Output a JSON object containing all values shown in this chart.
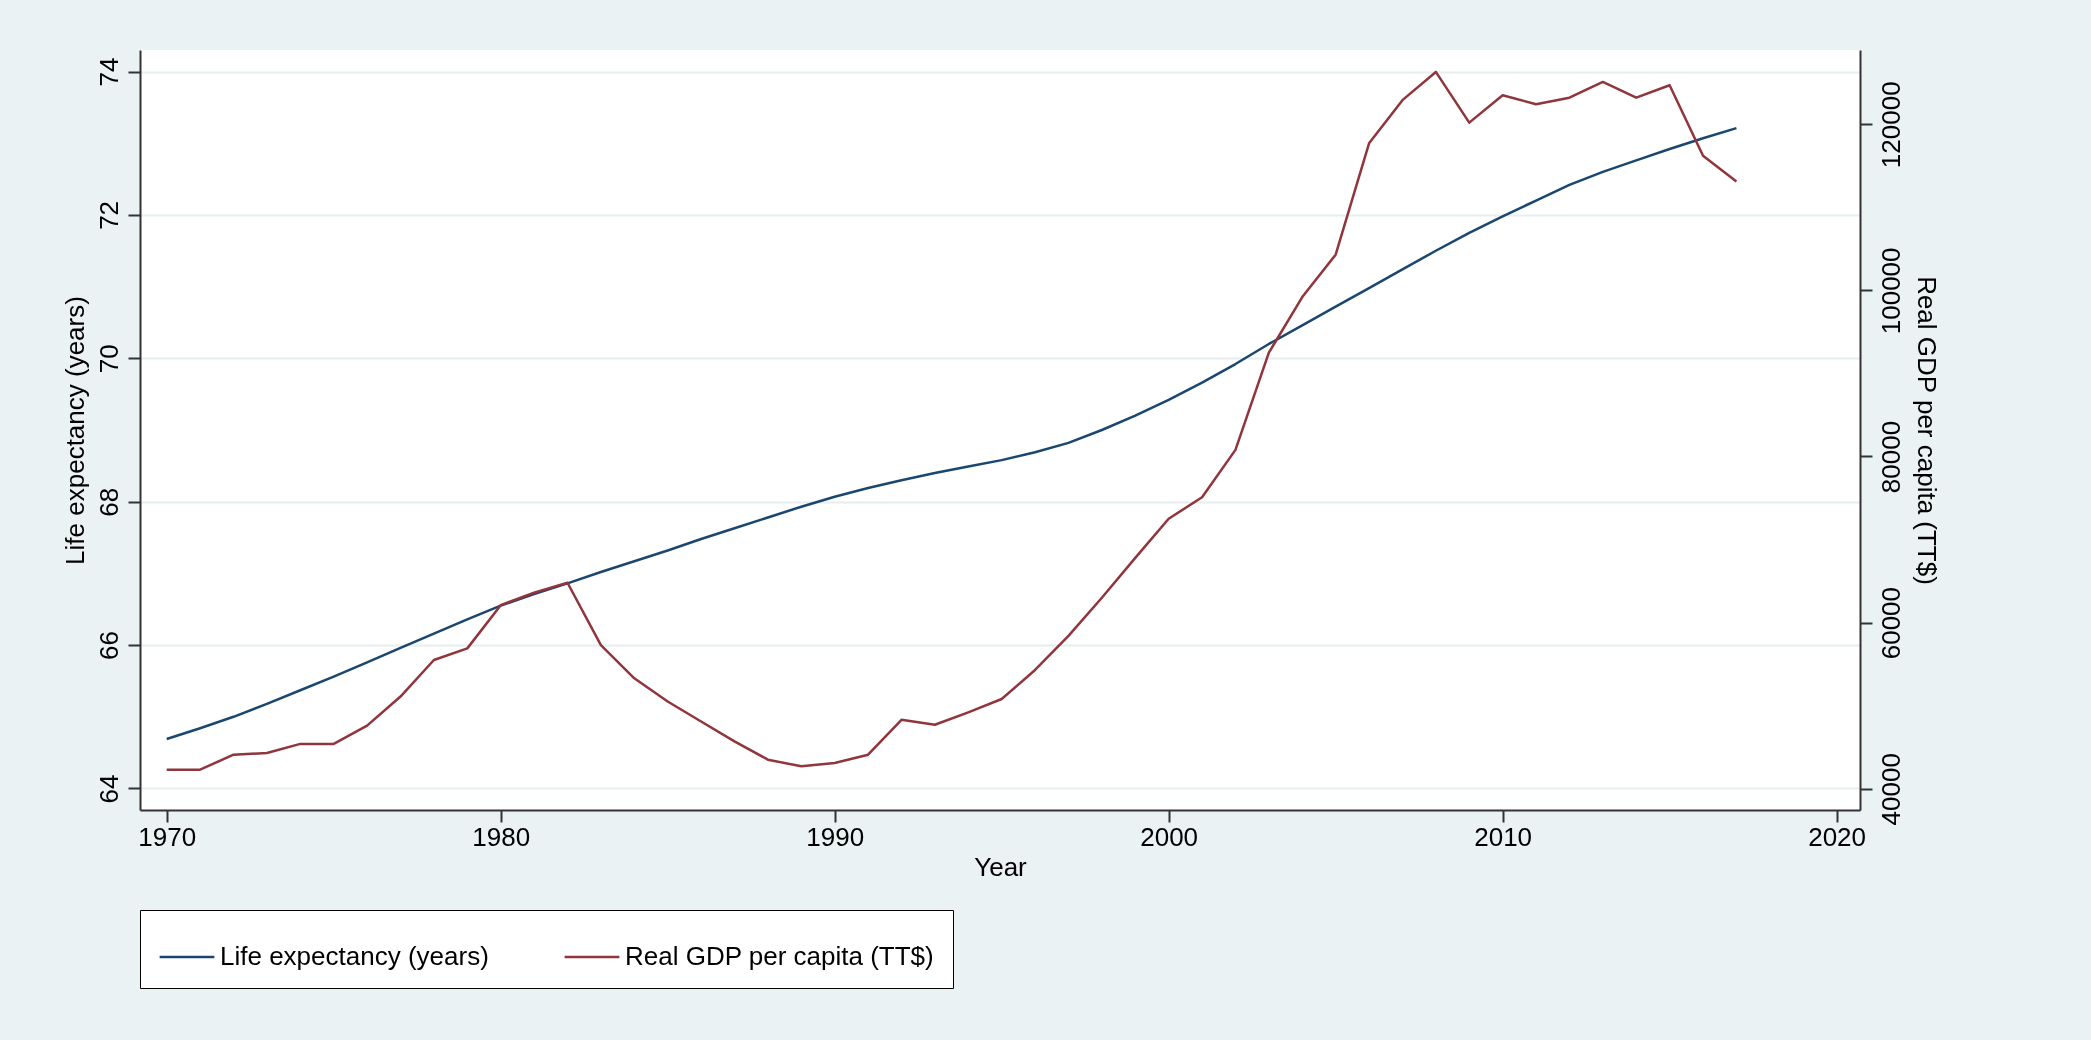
{
  "chart_data": {
    "type": "line",
    "xlabel": "Year",
    "ylabel": "Life expectancy (years)",
    "y2label": "Real GDP per capita (TT$)",
    "x": [
      1970,
      1971,
      1972,
      1973,
      1974,
      1975,
      1976,
      1977,
      1978,
      1979,
      1980,
      1981,
      1982,
      1983,
      1984,
      1985,
      1986,
      1987,
      1988,
      1989,
      1990,
      1991,
      1992,
      1993,
      1994,
      1995,
      1996,
      1997,
      1998,
      1999,
      2000,
      2001,
      2002,
      2003,
      2004,
      2005,
      2006,
      2007,
      2008,
      2009,
      2010,
      2011,
      2012,
      2013,
      2014,
      2015,
      2016,
      2017
    ],
    "series": [
      {
        "name": "Life expectancy (years)",
        "color": "#1a476f",
        "axis": "y",
        "values": [
          64.69,
          64.84,
          65.0,
          65.18,
          65.37,
          65.56,
          65.76,
          65.96,
          66.16,
          66.36,
          66.55,
          66.71,
          66.86,
          67.02,
          67.17,
          67.32,
          67.48,
          67.63,
          67.78,
          67.93,
          68.07,
          68.19,
          68.3,
          68.4,
          68.49,
          68.58,
          68.69,
          68.82,
          69.0,
          69.2,
          69.42,
          69.66,
          69.92,
          70.2,
          70.46,
          70.72,
          70.98,
          71.24,
          71.5,
          71.75,
          71.98,
          72.2,
          72.42,
          72.6,
          72.76,
          72.92,
          73.07,
          73.21
        ]
      },
      {
        "name": "Real GDP per capita (TT$)",
        "color": "#90353b",
        "axis": "y2",
        "values": [
          42300,
          42300,
          44100,
          44300,
          45400,
          45400,
          47600,
          51100,
          55500,
          56900,
          62100,
          63600,
          64800,
          57300,
          53300,
          50500,
          48100,
          45700,
          43500,
          42700,
          43100,
          44100,
          48300,
          47700,
          49200,
          50800,
          54300,
          58400,
          63000,
          67800,
          72500,
          75100,
          80800,
          92500,
          99200,
          104300,
          117700,
          122900,
          126300,
          120200,
          123500,
          122400,
          123200,
          125100,
          123200,
          124700,
          116200,
          113100
        ]
      }
    ],
    "xlim": [
      1969.2,
      2020.7
    ],
    "xticks": [
      1970,
      1980,
      1990,
      2000,
      2010,
      2020
    ],
    "ylim": [
      63.7,
      74.3
    ],
    "yticks": [
      64,
      66,
      68,
      70,
      72,
      74
    ],
    "y2lim": [
      37440,
      128940
    ],
    "y2ticks": [
      40000,
      60000,
      80000,
      100000,
      120000
    ],
    "grid": "y",
    "legend": "bottom"
  }
}
